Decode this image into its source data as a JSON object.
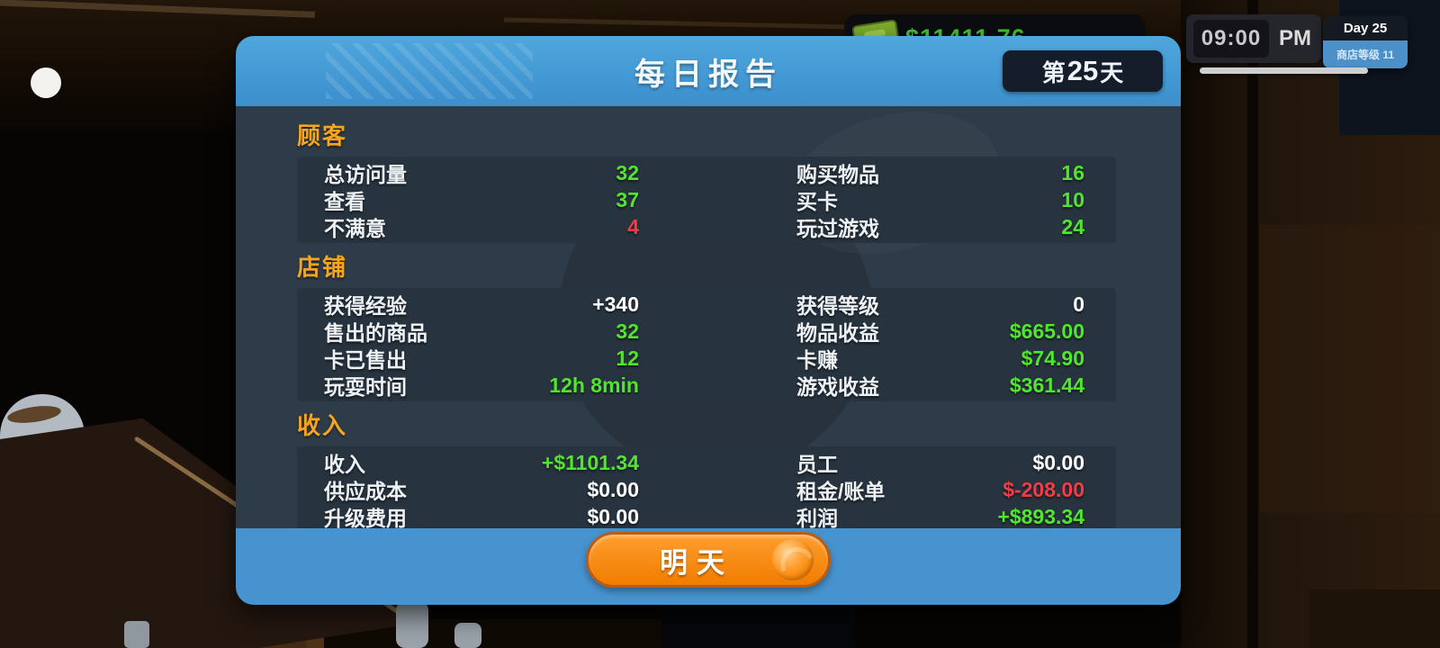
{
  "palette": {
    "header_blue": "#4399d4",
    "panel_dark": "#2e3b48",
    "row_strip": "#27333e",
    "section_orange": "#f7a51d",
    "value_green": "#52e52e",
    "value_red": "#f23c46",
    "value_white": "#ffffff",
    "button_orange": "#f98f16",
    "day_badge_dark": "#141d29",
    "level_badge_blue": "#4b90c9"
  },
  "hud": {
    "money_panel": {
      "icon": "cash-icon",
      "text": "$11411.76"
    },
    "clock": {
      "time": "09:00",
      "meridiem": "PM"
    },
    "day_panel": {
      "day": "Day 25",
      "shop_level": "商店等级 11"
    }
  },
  "report": {
    "title": "每日报告",
    "day_badge": {
      "prefix": "第",
      "number": "25",
      "suffix": "天"
    },
    "sections": [
      {
        "header": "顾客",
        "rows": [
          {
            "left": {
              "label": "总访问量",
              "value": "32",
              "color": "green"
            },
            "right": {
              "label": "购买物品",
              "value": "16",
              "color": "green"
            }
          },
          {
            "left": {
              "label": "查看",
              "value": "37",
              "color": "green"
            },
            "right": {
              "label": "买卡",
              "value": "10",
              "color": "green"
            }
          },
          {
            "left": {
              "label": "不满意",
              "value": "4",
              "color": "red"
            },
            "right": {
              "label": "玩过游戏",
              "value": "24",
              "color": "green"
            }
          }
        ]
      },
      {
        "header": "店铺",
        "rows": [
          {
            "left": {
              "label": "获得经验",
              "value": "+340",
              "color": "white"
            },
            "right": {
              "label": "获得等级",
              "value": "0",
              "color": "white"
            }
          },
          {
            "left": {
              "label": "售出的商品",
              "value": "32",
              "color": "green"
            },
            "right": {
              "label": "物品收益",
              "value": "$665.00",
              "color": "green"
            }
          },
          {
            "left": {
              "label": "卡已售出",
              "value": "12",
              "color": "green"
            },
            "right": {
              "label": "卡赚",
              "value": "$74.90",
              "color": "green"
            }
          },
          {
            "left": {
              "label": "玩耍时间",
              "value": "12h 8min",
              "color": "green"
            },
            "right": {
              "label": "游戏收益",
              "value": "$361.44",
              "color": "green"
            }
          }
        ]
      },
      {
        "header": "收入",
        "rows": [
          {
            "left": {
              "label": "收入",
              "value": "+$1101.34",
              "color": "green"
            },
            "right": {
              "label": "员工",
              "value": "$0.00",
              "color": "white"
            }
          },
          {
            "left": {
              "label": "供应成本",
              "value": "$0.00",
              "color": "white"
            },
            "right": {
              "label": "租金/账单",
              "value": "$-208.00",
              "color": "red"
            }
          },
          {
            "left": {
              "label": "升级费用",
              "value": "$0.00",
              "color": "white"
            },
            "right": {
              "label": "利润",
              "value": "+$893.34",
              "color": "green"
            }
          }
        ]
      }
    ],
    "button": {
      "label": "明天"
    }
  }
}
